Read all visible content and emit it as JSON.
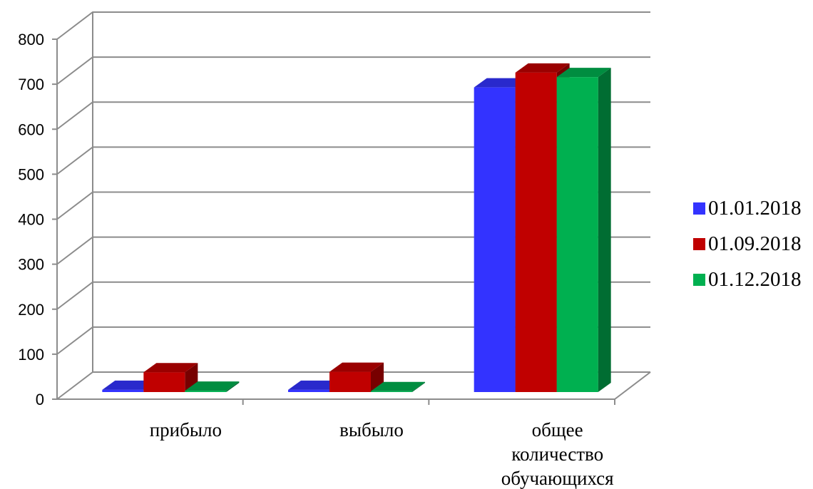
{
  "chart_data": {
    "type": "bar",
    "style": "3d-clustered-column",
    "categories": [
      [
        "прибыло"
      ],
      [
        "выбыло"
      ],
      [
        "общее",
        "количество",
        "обучающихся"
      ]
    ],
    "series": [
      {
        "name": "01.01.2018",
        "color": "#3333ff",
        "values": [
          5,
          5,
          677
        ]
      },
      {
        "name": "01.09.2018",
        "color": "#c00000",
        "values": [
          44,
          45,
          710
        ]
      },
      {
        "name": "01.12.2018",
        "color": "#00b050",
        "values": [
          3,
          2,
          700
        ]
      }
    ],
    "yticks": [
      "0",
      "100",
      "200",
      "300",
      "400",
      "500",
      "600",
      "700",
      "800"
    ],
    "ylim": [
      0,
      800
    ],
    "grid": true,
    "legend_position": "right"
  }
}
